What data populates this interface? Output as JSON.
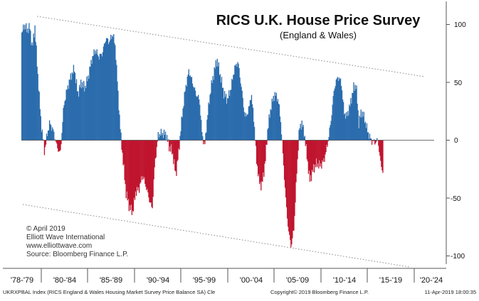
{
  "chart_data": {
    "type": "bar",
    "title": "RICS U.K. House Price Survey",
    "subtitle": "(England & Wales)",
    "ylim": [
      -110,
      110
    ],
    "y_ticks": [
      100,
      50,
      0,
      -50,
      -100
    ],
    "x_period_labels": [
      "'78-'79",
      "'80-'84",
      "'85-'89",
      "'90-'94",
      "'95-'99",
      "'00-'04",
      "'05-'09",
      "'10-'14",
      "'15-'19",
      "'20-'24"
    ],
    "colors": {
      "positive": "#2b6cad",
      "negative": "#c0152f",
      "trendline": "#888888"
    },
    "grid": false,
    "x_start": 1978.0,
    "x_end": 2025.0,
    "key_points": [
      [
        1978.0,
        92
      ],
      [
        1978.3,
        100
      ],
      [
        1978.6,
        95
      ],
      [
        1978.9,
        98
      ],
      [
        1979.2,
        80
      ],
      [
        1979.5,
        98
      ],
      [
        1979.8,
        60
      ],
      [
        1980.2,
        15
      ],
      [
        1980.6,
        -10
      ],
      [
        1980.9,
        5
      ],
      [
        1981.2,
        15
      ],
      [
        1981.6,
        8
      ],
      [
        1982.0,
        -5
      ],
      [
        1982.4,
        -12
      ],
      [
        1982.8,
        30
      ],
      [
        1983.2,
        45
      ],
      [
        1983.6,
        55
      ],
      [
        1984.0,
        62
      ],
      [
        1984.4,
        40
      ],
      [
        1984.8,
        50
      ],
      [
        1985.2,
        45
      ],
      [
        1985.6,
        55
      ],
      [
        1986.0,
        70
      ],
      [
        1986.4,
        78
      ],
      [
        1986.8,
        72
      ],
      [
        1987.2,
        75
      ],
      [
        1987.6,
        88
      ],
      [
        1988.0,
        85
      ],
      [
        1988.4,
        92
      ],
      [
        1988.7,
        80
      ],
      [
        1989.0,
        40
      ],
      [
        1989.3,
        5
      ],
      [
        1989.6,
        -20
      ],
      [
        1989.9,
        -45
      ],
      [
        1990.3,
        -58
      ],
      [
        1990.7,
        -62
      ],
      [
        1991.0,
        -45
      ],
      [
        1991.4,
        -42
      ],
      [
        1991.8,
        -30
      ],
      [
        1992.2,
        -40
      ],
      [
        1992.6,
        -52
      ],
      [
        1992.9,
        -60
      ],
      [
        1993.2,
        -20
      ],
      [
        1993.6,
        5
      ],
      [
        1994.0,
        6
      ],
      [
        1994.5,
        5
      ],
      [
        1994.8,
        -5
      ],
      [
        1995.2,
        -10
      ],
      [
        1995.6,
        -30
      ],
      [
        1995.9,
        -12
      ],
      [
        1996.3,
        20
      ],
      [
        1996.7,
        45
      ],
      [
        1997.1,
        60
      ],
      [
        1997.5,
        50
      ],
      [
        1997.9,
        40
      ],
      [
        1998.3,
        35
      ],
      [
        1998.6,
        5
      ],
      [
        1998.9,
        -5
      ],
      [
        1999.2,
        20
      ],
      [
        1999.6,
        45
      ],
      [
        2000.0,
        60
      ],
      [
        2000.3,
        70
      ],
      [
        2000.7,
        55
      ],
      [
        2001.1,
        40
      ],
      [
        2001.5,
        35
      ],
      [
        2001.9,
        45
      ],
      [
        2002.3,
        62
      ],
      [
        2002.7,
        68
      ],
      [
        2003.1,
        45
      ],
      [
        2003.5,
        20
      ],
      [
        2003.9,
        25
      ],
      [
        2004.2,
        40
      ],
      [
        2004.5,
        20
      ],
      [
        2004.8,
        -15
      ],
      [
        2005.1,
        -35
      ],
      [
        2005.4,
        -40
      ],
      [
        2005.8,
        -20
      ],
      [
        2006.1,
        10
      ],
      [
        2006.5,
        30
      ],
      [
        2006.9,
        40
      ],
      [
        2007.3,
        35
      ],
      [
        2007.6,
        15
      ],
      [
        2007.9,
        -20
      ],
      [
        2008.2,
        -55
      ],
      [
        2008.5,
        -80
      ],
      [
        2008.8,
        -92
      ],
      [
        2009.1,
        -75
      ],
      [
        2009.4,
        -30
      ],
      [
        2009.7,
        10
      ],
      [
        2010.0,
        15
      ],
      [
        2010.3,
        5
      ],
      [
        2010.6,
        -15
      ],
      [
        2010.9,
        -35
      ],
      [
        2011.3,
        -25
      ],
      [
        2011.7,
        -20
      ],
      [
        2012.1,
        -22
      ],
      [
        2012.5,
        -18
      ],
      [
        2012.9,
        -5
      ],
      [
        2013.3,
        15
      ],
      [
        2013.7,
        45
      ],
      [
        2014.1,
        55
      ],
      [
        2014.5,
        50
      ],
      [
        2014.8,
        25
      ],
      [
        2015.1,
        20
      ],
      [
        2015.5,
        30
      ],
      [
        2015.9,
        45
      ],
      [
        2016.2,
        48
      ],
      [
        2016.5,
        15
      ],
      [
        2016.8,
        25
      ],
      [
        2017.1,
        20
      ],
      [
        2017.5,
        8
      ],
      [
        2017.9,
        0
      ],
      [
        2018.3,
        -2
      ],
      [
        2018.7,
        0
      ],
      [
        2019.0,
        -20
      ],
      [
        2019.25,
        -27
      ]
    ]
  },
  "annotations": {
    "copyright": "© April 2019",
    "org": "Elliott Wave International",
    "website": "www.elliottwave.com",
    "source": "Source: Bloomberg Finance L.P."
  },
  "footer": {
    "left": "UKRXPBAL Index (RICS England & Wales Housing Market Survey Price Balance SA) Cle",
    "center": "Copyright© 2019 Bloomberg Finance L.P.",
    "right": "11-Apr-2019 18:00:35"
  }
}
